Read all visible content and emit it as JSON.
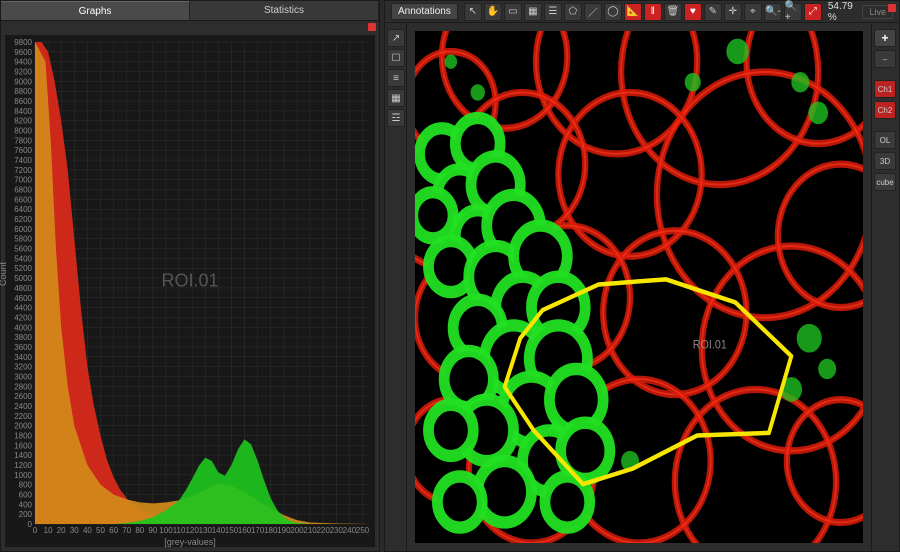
{
  "left": {
    "tabs": [
      {
        "label": "Graphs",
        "active": true
      },
      {
        "label": "Statistics",
        "active": false
      }
    ],
    "chart": {
      "type": "histogram",
      "roi_label": "ROI.01",
      "xlabel": "[grey-values]",
      "ylabel": "Count",
      "xlim": [
        0,
        255
      ],
      "ylim": [
        0,
        9800
      ],
      "xtick_step": 10,
      "ytick_step": 200,
      "background_color": "#181818",
      "grid_color": "#303030",
      "axis_color": "#888888",
      "series": [
        {
          "name": "red-channel",
          "fill_color": "#dd2a1a",
          "points": [
            [
              0,
              9800
            ],
            [
              5,
              9800
            ],
            [
              10,
              9600
            ],
            [
              15,
              9000
            ],
            [
              20,
              8200
            ],
            [
              25,
              7200
            ],
            [
              30,
              5800
            ],
            [
              35,
              4400
            ],
            [
              40,
              3200
            ],
            [
              45,
              2400
            ],
            [
              50,
              1800
            ],
            [
              55,
              1300
            ],
            [
              60,
              950
            ],
            [
              65,
              700
            ],
            [
              70,
              520
            ],
            [
              75,
              400
            ],
            [
              80,
              300
            ],
            [
              85,
              240
            ],
            [
              90,
              190
            ],
            [
              95,
              150
            ],
            [
              100,
              120
            ],
            [
              110,
              80
            ],
            [
              120,
              50
            ],
            [
              130,
              30
            ],
            [
              140,
              20
            ],
            [
              160,
              10
            ],
            [
              200,
              5
            ],
            [
              255,
              0
            ]
          ]
        },
        {
          "name": "orange-channel",
          "fill_color": "#d48a1a",
          "points": [
            [
              0,
              9800
            ],
            [
              8,
              9400
            ],
            [
              12,
              7800
            ],
            [
              16,
              5600
            ],
            [
              20,
              4000
            ],
            [
              25,
              2800
            ],
            [
              30,
              2000
            ],
            [
              40,
              1200
            ],
            [
              50,
              800
            ],
            [
              60,
              600
            ],
            [
              70,
              500
            ],
            [
              80,
              440
            ],
            [
              90,
              420
            ],
            [
              100,
              440
            ],
            [
              110,
              480
            ],
            [
              120,
              560
            ],
            [
              130,
              700
            ],
            [
              140,
              820
            ],
            [
              150,
              780
            ],
            [
              160,
              640
            ],
            [
              170,
              480
            ],
            [
              180,
              320
            ],
            [
              190,
              180
            ],
            [
              200,
              80
            ],
            [
              210,
              30
            ],
            [
              230,
              10
            ],
            [
              255,
              0
            ]
          ]
        },
        {
          "name": "green-channel",
          "fill_color": "#1ec41e",
          "points": [
            [
              60,
              0
            ],
            [
              70,
              20
            ],
            [
              80,
              60
            ],
            [
              90,
              140
            ],
            [
              100,
              280
            ],
            [
              110,
              480
            ],
            [
              115,
              680
            ],
            [
              120,
              920
            ],
            [
              125,
              1180
            ],
            [
              130,
              1350
            ],
            [
              135,
              1280
            ],
            [
              140,
              1050
            ],
            [
              145,
              980
            ],
            [
              150,
              1200
            ],
            [
              155,
              1520
            ],
            [
              160,
              1720
            ],
            [
              165,
              1620
            ],
            [
              170,
              1280
            ],
            [
              175,
              880
            ],
            [
              180,
              520
            ],
            [
              185,
              280
            ],
            [
              190,
              140
            ],
            [
              195,
              60
            ],
            [
              200,
              20
            ],
            [
              210,
              0
            ]
          ]
        }
      ]
    }
  },
  "right": {
    "annotations_label": "Annotations",
    "zoom_pct": "54.79 %",
    "live_label": "Live",
    "toolbar_icons": [
      "pointer",
      "hand",
      "rect",
      "rect-group",
      "layers",
      "poly",
      "line",
      "ellipse",
      "ruler",
      "pause",
      "trash",
      "heart",
      "pencil",
      "crosshair",
      "compass",
      "magnifier-minus",
      "magnifier-plus",
      "expand"
    ],
    "side_icons": [
      "share",
      "window",
      "stack",
      "grid",
      "layers2"
    ],
    "right_icons": [
      "plus",
      "minus",
      "divider",
      "Ch1",
      "Ch2",
      "divider",
      "OL",
      "3D",
      "cube"
    ],
    "channel_colors": {
      "Ch1": "#b22222",
      "Ch2": "#b22222"
    },
    "roi_polygon": {
      "stroke": "#f7e600",
      "stroke_width": 4,
      "points": [
        [
          0.285,
          0.545
        ],
        [
          0.41,
          0.495
        ],
        [
          0.56,
          0.485
        ],
        [
          0.715,
          0.53
        ],
        [
          0.84,
          0.635
        ],
        [
          0.79,
          0.785
        ],
        [
          0.63,
          0.79
        ],
        [
          0.485,
          0.855
        ],
        [
          0.375,
          0.885
        ],
        [
          0.265,
          0.78
        ],
        [
          0.2,
          0.695
        ],
        [
          0.235,
          0.6
        ]
      ]
    },
    "roi_marker_label": "ROI.01"
  }
}
